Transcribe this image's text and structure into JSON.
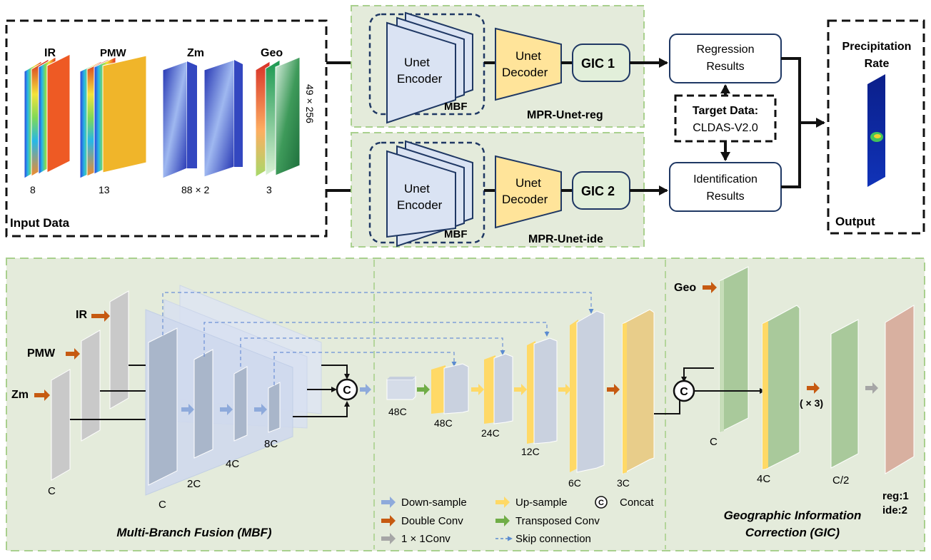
{
  "input": {
    "title": "Input Data",
    "ir": "IR",
    "pmw": "PMW",
    "zm": "Zm",
    "geo": "Geo",
    "ir_count": "8",
    "pmw_count": "13",
    "zm_count": "88 × 2",
    "geo_count": "3",
    "size": "49 × 256"
  },
  "reg_branch": {
    "encoder": [
      "Unet",
      "Encoder"
    ],
    "mbf": "MBF",
    "decoder": [
      "Unet",
      "Decoder"
    ],
    "gic": "GIC 1",
    "name": "MPR-Unet-reg"
  },
  "ide_branch": {
    "encoder": [
      "Unet",
      "Encoder"
    ],
    "mbf": "MBF",
    "decoder": [
      "Unet",
      "Decoder"
    ],
    "gic": "GIC 2",
    "name": "MPR-Unet-ide"
  },
  "results": {
    "regression": [
      "Regression",
      "Results"
    ],
    "identification": [
      "Identification",
      "Results"
    ],
    "target": [
      "Target Data:",
      "CLDAS-V2.0"
    ]
  },
  "output": {
    "title": [
      "Precipitation",
      "Rate"
    ],
    "label": "Output"
  },
  "mbf_panel": {
    "ir": "IR",
    "pmw": "PMW",
    "zm": "Zm",
    "c": "C",
    "c2": "C",
    "two_c": "2C",
    "four_c": "4C",
    "eight_c": "8C",
    "concat": "C",
    "title": "Multi-Branch Fusion (MBF)"
  },
  "decoder_panel": {
    "c48": "48C",
    "c48b": "48C",
    "c24": "24C",
    "c12": "12C",
    "c6": "6C",
    "c3": "3C"
  },
  "gic_panel": {
    "geo": "Geo",
    "concat": "C",
    "c": "C",
    "c4": "4C",
    "times3": "( × 3)",
    "chalf": "C/2",
    "reg": "reg:1",
    "ide": "ide:2",
    "title": [
      "Geographic Information",
      "Correction (GIC)"
    ]
  },
  "legend": {
    "down": "Down-sample",
    "double": "Double Conv",
    "one": "1 × 1Conv",
    "up": "Up-sample",
    "trans": "Transposed Conv",
    "skip": "Skip connection",
    "concat": "Concat",
    "concat_sym": "C"
  },
  "colors": {
    "panel_bg": "#e4ebdb",
    "panel_border": "#a9d08e",
    "orange": "#c65a11",
    "blue_arrow": "#8eaadb",
    "yellow": "#ffd966",
    "green_arrow": "#70ad47",
    "gray_arrow": "#a6a6a6",
    "encoder_fill": "#dae3f3",
    "decoder_fill": "#ffe49a",
    "gic_fill": "#e2efda",
    "target_text": "#1a1a1a"
  }
}
